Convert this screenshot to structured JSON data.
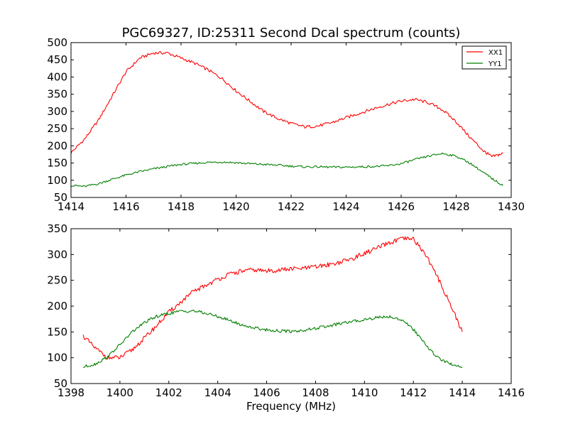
{
  "figure_title": "PGC69327, ID:25311 Second Dcal spectrum (counts)",
  "xlabel": "Frequency (MHz)",
  "legend": {
    "items": [
      "XX1",
      "YY1"
    ],
    "placement": "upper-right"
  },
  "colors": {
    "XX1": "#ff0000",
    "YY1": "#007f00"
  },
  "chart_data": [
    {
      "type": "line",
      "title": "PGC69327, ID:25311 Second Dcal spectrum (counts)",
      "xlabel": "",
      "ylabel": "",
      "xlim": [
        1414,
        1430
      ],
      "ylim": [
        50,
        500
      ],
      "xticks": [
        1414,
        1416,
        1418,
        1420,
        1422,
        1424,
        1426,
        1428,
        1430
      ],
      "yticks": [
        50,
        100,
        150,
        200,
        250,
        300,
        350,
        400,
        450,
        500
      ],
      "legend": "upper-right",
      "grid": false,
      "series": [
        {
          "name": "XX1",
          "color": "#ff0000",
          "x": [
            1414.0,
            1414.5,
            1415.0,
            1415.5,
            1416.0,
            1416.5,
            1417.0,
            1417.5,
            1418.0,
            1418.5,
            1419.0,
            1419.5,
            1420.0,
            1420.5,
            1421.0,
            1421.5,
            1422.0,
            1422.5,
            1423.0,
            1423.5,
            1424.0,
            1424.5,
            1425.0,
            1425.5,
            1426.0,
            1426.5,
            1427.0,
            1427.5,
            1428.0,
            1428.5,
            1429.0,
            1429.3,
            1429.7
          ],
          "values": [
            180,
            220,
            275,
            345,
            415,
            455,
            470,
            470,
            455,
            440,
            420,
            395,
            360,
            330,
            300,
            280,
            265,
            255,
            258,
            268,
            282,
            295,
            308,
            320,
            330,
            335,
            325,
            305,
            270,
            225,
            185,
            168,
            178
          ]
        },
        {
          "name": "YY1",
          "color": "#007f00",
          "x": [
            1414.0,
            1414.5,
            1415.0,
            1415.5,
            1416.0,
            1416.5,
            1417.0,
            1417.5,
            1418.0,
            1418.5,
            1419.0,
            1419.5,
            1420.0,
            1420.5,
            1421.0,
            1421.5,
            1422.0,
            1422.5,
            1423.0,
            1423.5,
            1424.0,
            1424.5,
            1425.0,
            1425.5,
            1426.0,
            1426.5,
            1427.0,
            1427.5,
            1428.0,
            1428.5,
            1429.0,
            1429.3,
            1429.7
          ],
          "values": [
            85,
            82,
            90,
            103,
            115,
            125,
            133,
            140,
            146,
            149,
            152,
            153,
            151,
            148,
            146,
            144,
            141,
            139,
            139,
            138,
            138,
            139,
            140,
            142,
            148,
            160,
            170,
            178,
            170,
            150,
            122,
            105,
            85
          ]
        }
      ]
    },
    {
      "type": "line",
      "title": "",
      "xlabel": "Frequency (MHz)",
      "ylabel": "",
      "xlim": [
        1398,
        1416
      ],
      "ylim": [
        50,
        350
      ],
      "xticks": [
        1398,
        1400,
        1402,
        1404,
        1406,
        1408,
        1410,
        1412,
        1414,
        1416
      ],
      "yticks": [
        50,
        100,
        150,
        200,
        250,
        300,
        350
      ],
      "grid": false,
      "series": [
        {
          "name": "XX1",
          "color": "#ff0000",
          "x": [
            1398.5,
            1399.0,
            1399.5,
            1400.0,
            1400.5,
            1401.0,
            1401.5,
            1402.0,
            1402.5,
            1403.0,
            1403.5,
            1404.0,
            1404.5,
            1405.0,
            1405.5,
            1406.0,
            1406.5,
            1407.0,
            1407.5,
            1408.0,
            1408.5,
            1409.0,
            1409.5,
            1410.0,
            1410.5,
            1411.0,
            1411.5,
            1412.0,
            1412.5,
            1413.0,
            1413.5,
            1414.0
          ],
          "values": [
            142,
            118,
            100,
            100,
            115,
            138,
            162,
            188,
            208,
            228,
            240,
            252,
            262,
            268,
            270,
            268,
            270,
            272,
            273,
            276,
            280,
            285,
            292,
            302,
            312,
            322,
            330,
            330,
            300,
            255,
            205,
            150
          ]
        },
        {
          "name": "YY1",
          "color": "#007f00",
          "x": [
            1398.5,
            1399.0,
            1399.5,
            1400.0,
            1400.5,
            1401.0,
            1401.5,
            1402.0,
            1402.5,
            1403.0,
            1403.5,
            1404.0,
            1404.5,
            1405.0,
            1405.5,
            1406.0,
            1406.5,
            1407.0,
            1407.5,
            1408.0,
            1408.5,
            1409.0,
            1409.5,
            1410.0,
            1410.5,
            1411.0,
            1411.5,
            1412.0,
            1412.5,
            1413.0,
            1413.5,
            1414.0
          ],
          "values": [
            82,
            88,
            102,
            125,
            150,
            168,
            180,
            186,
            190,
            191,
            186,
            180,
            172,
            163,
            158,
            154,
            152,
            151,
            153,
            157,
            161,
            166,
            170,
            174,
            178,
            180,
            174,
            155,
            125,
            100,
            88,
            82
          ]
        }
      ]
    }
  ]
}
